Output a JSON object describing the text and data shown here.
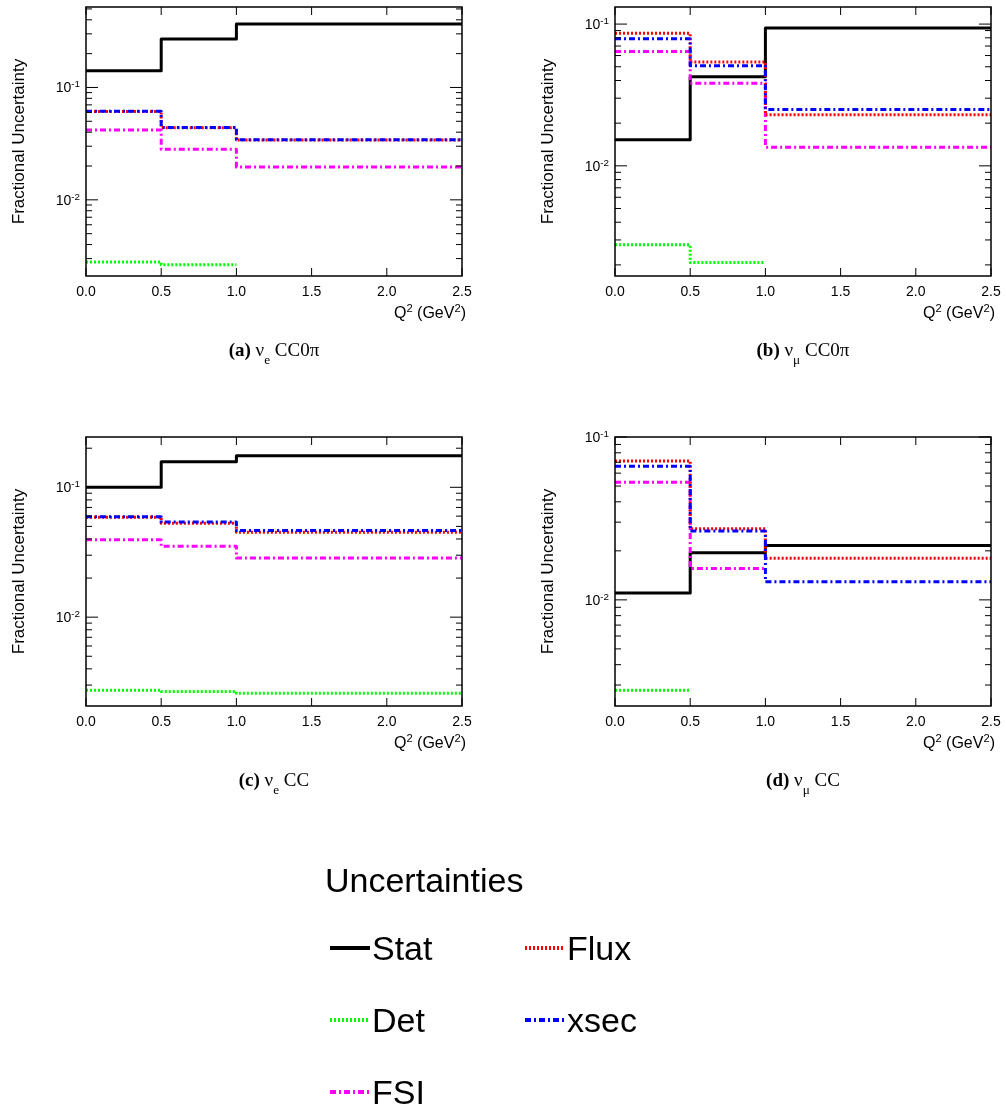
{
  "chart_data": [
    {
      "type": "step",
      "title": "(a) ν$_{e}$ CC0π",
      "xlabel": "Q$^{2}$ (GeV$^{2}$)",
      "ylabel": "Fractional Uncertainty",
      "log": "y",
      "xlim": [
        0,
        2.5
      ],
      "ylim": [
        0.0021,
        0.52
      ],
      "legend": "bottom",
      "legend_title": "Uncertainties",
      "xticks": [
        {
          "value": 0,
          "label": "0.0"
        },
        0.5,
        {
          "value": 1,
          "label": "1.0"
        },
        1.5,
        {
          "value": 2,
          "label": "2.0"
        },
        2.5
      ],
      "yticks": [
        {
          "value": 0.003,
          "label": null
        },
        {
          "value": 0.004,
          "label": null
        },
        {
          "value": 0.005,
          "label": null
        },
        {
          "value": 0.006,
          "label": null
        },
        {
          "value": 0.007,
          "label": null
        },
        {
          "value": 0.008,
          "label": null
        },
        {
          "value": 0.009,
          "label": null
        },
        {
          "value": 0.01,
          "label": "10$^{-2}$"
        },
        {
          "value": 0.02,
          "label": null
        },
        {
          "value": 0.03,
          "label": null
        },
        {
          "value": 0.04,
          "label": null
        },
        {
          "value": 0.05,
          "label": null
        },
        {
          "value": 0.06,
          "label": null
        },
        {
          "value": 0.07,
          "label": null
        },
        {
          "value": 0.08,
          "label": null
        },
        {
          "value": 0.09,
          "label": null
        },
        {
          "value": 0.1,
          "label": "10$^{-1}$"
        },
        {
          "value": 0.2,
          "label": null
        },
        {
          "value": 0.3,
          "label": null
        },
        {
          "value": 0.4,
          "label": null
        },
        {
          "value": 0.5,
          "label": null
        }
      ],
      "series": [
        {
          "name": "Stat",
          "color": "#000000",
          "line_style": "solid",
          "x": [
            0,
            0.5,
            1,
            2.5
          ],
          "values": [
            0.141,
            0.27,
            0.367,
            0.367
          ]
        },
        {
          "name": "Det",
          "color": "#00ff00",
          "line_style": "dotted",
          "x": [
            0,
            0.5,
            1
          ],
          "values": [
            0.0028,
            0.00265,
            0.00265
          ]
        },
        {
          "name": "FSI",
          "color": "#ff00ff",
          "line_style": "dashdot",
          "x": [
            0,
            0.5,
            1,
            2.5
          ],
          "values": [
            0.0418,
            0.0282,
            0.0196,
            0.0196
          ]
        },
        {
          "name": "Flux",
          "color": "#ff0000",
          "line_style": "dotted",
          "x": [
            0,
            0.5,
            1,
            2.5
          ],
          "values": [
            0.061,
            0.0437,
            0.034,
            0.034
          ]
        },
        {
          "name": "xsec",
          "color": "#0000ff",
          "line_style": "dashdot",
          "x": [
            0,
            0.5,
            1,
            2.5
          ],
          "values": [
            0.0614,
            0.0441,
            0.0343,
            0.0343
          ]
        }
      ]
    },
    {
      "type": "step",
      "title": "(b) ν$_{μ}$ CC0π",
      "xlabel": "Q$^{2}$ (GeV$^{2}$)",
      "ylabel": "Fractional Uncertainty",
      "log": "y",
      "xlim": [
        0,
        2.5
      ],
      "ylim": [
        0.00167,
        0.132
      ],
      "xticks": [
        {
          "value": 0,
          "label": "0.0"
        },
        0.5,
        {
          "value": 1,
          "label": "1.0"
        },
        1.5,
        {
          "value": 2,
          "label": "2.0"
        },
        2.5
      ],
      "yticks": [
        {
          "value": 0.002,
          "label": null
        },
        {
          "value": 0.003,
          "label": null
        },
        {
          "value": 0.004,
          "label": null
        },
        {
          "value": 0.005,
          "label": null
        },
        {
          "value": 0.006,
          "label": null
        },
        {
          "value": 0.007,
          "label": null
        },
        {
          "value": 0.008,
          "label": null
        },
        {
          "value": 0.009,
          "label": null
        },
        {
          "value": 0.01,
          "label": "10$^{-2}$"
        },
        {
          "value": 0.02,
          "label": null
        },
        {
          "value": 0.03,
          "label": null
        },
        {
          "value": 0.04,
          "label": null
        },
        {
          "value": 0.05,
          "label": null
        },
        {
          "value": 0.06,
          "label": null
        },
        {
          "value": 0.07,
          "label": null
        },
        {
          "value": 0.08,
          "label": null
        },
        {
          "value": 0.09,
          "label": null
        },
        {
          "value": 0.1,
          "label": "10$^{-1}$"
        }
      ],
      "series": [
        {
          "color": "#000000",
          "line_style": "solid",
          "x": [
            0,
            0.5,
            1,
            2.5
          ],
          "values": [
            0.0153,
            0.0425,
            0.0938,
            0.0938
          ]
        },
        {
          "color": "#00ff00",
          "line_style": "dotted",
          "x": [
            0,
            0.5,
            1
          ],
          "values": [
            0.00277,
            0.00208,
            0.00208
          ]
        },
        {
          "color": "#ff00ff",
          "line_style": "dashdot",
          "x": [
            0,
            0.5,
            1,
            2.5
          ],
          "values": [
            0.0641,
            0.0383,
            0.0135,
            0.0135
          ]
        },
        {
          "color": "#ff0000",
          "line_style": "dotted",
          "x": [
            0,
            0.5,
            1,
            2.5
          ],
          "values": [
            0.086,
            0.054,
            0.0229,
            0.0229
          ]
        },
        {
          "color": "#0000ff",
          "line_style": "dashdot",
          "x": [
            0,
            0.5,
            1,
            2.5
          ],
          "values": [
            0.0788,
            0.0508,
            0.025,
            0.025
          ]
        }
      ]
    },
    {
      "type": "step",
      "title": "(c) ν$_{e}$ CC",
      "xlabel": "Q$^{2}$ (GeV$^{2}$)",
      "ylabel": "Fractional Uncertainty",
      "log": "y",
      "xlim": [
        0,
        2.5
      ],
      "ylim": [
        0.00207,
        0.244
      ],
      "xticks": [
        {
          "value": 0,
          "label": "0.0"
        },
        0.5,
        {
          "value": 1,
          "label": "1.0"
        },
        1.5,
        {
          "value": 2,
          "label": "2.0"
        },
        2.5
      ],
      "yticks": [
        {
          "value": 0.003,
          "label": null
        },
        {
          "value": 0.004,
          "label": null
        },
        {
          "value": 0.005,
          "label": null
        },
        {
          "value": 0.006,
          "label": null
        },
        {
          "value": 0.007,
          "label": null
        },
        {
          "value": 0.008,
          "label": null
        },
        {
          "value": 0.009,
          "label": null
        },
        {
          "value": 0.01,
          "label": "10$^{-2}$"
        },
        {
          "value": 0.02,
          "label": null
        },
        {
          "value": 0.03,
          "label": null
        },
        {
          "value": 0.04,
          "label": null
        },
        {
          "value": 0.05,
          "label": null
        },
        {
          "value": 0.06,
          "label": null
        },
        {
          "value": 0.07,
          "label": null
        },
        {
          "value": 0.08,
          "label": null
        },
        {
          "value": 0.09,
          "label": null
        },
        {
          "value": 0.1,
          "label": "10$^{-1}$"
        },
        {
          "value": 0.2,
          "label": null
        }
      ],
      "series": [
        {
          "color": "#000000",
          "line_style": "solid",
          "x": [
            0,
            0.5,
            1,
            2.5
          ],
          "values": [
            0.1,
            0.157,
            0.175,
            0.175
          ]
        },
        {
          "color": "#00ff00",
          "line_style": "dotted",
          "x": [
            0,
            0.5,
            1,
            2.5
          ],
          "values": [
            0.00274,
            0.00268,
            0.00259,
            0.00259
          ]
        },
        {
          "color": "#ff00ff",
          "line_style": "dashdot",
          "x": [
            0,
            0.5,
            1,
            2.5
          ],
          "values": [
            0.0394,
            0.0352,
            0.0286,
            0.0286
          ]
        },
        {
          "color": "#ff0000",
          "line_style": "dotted",
          "x": [
            0,
            0.5,
            1,
            2.5
          ],
          "values": [
            0.0588,
            0.0528,
            0.045,
            0.045
          ]
        },
        {
          "color": "#0000ff",
          "line_style": "dashdot",
          "x": [
            0,
            0.5,
            1,
            2.5
          ],
          "values": [
            0.0594,
            0.0541,
            0.0464,
            0.0464
          ]
        }
      ]
    },
    {
      "type": "step",
      "title": "(d) ν$_{μ}$ CC",
      "xlabel": "Q$^{2}$ (GeV$^{2}$)",
      "ylabel": "Fractional Uncertainty",
      "log": "y",
      "xlim": [
        0,
        2.5
      ],
      "ylim": [
        0.00223,
        0.1
      ],
      "xticks": [
        {
          "value": 0,
          "label": "0.0"
        },
        0.5,
        {
          "value": 1,
          "label": "1.0"
        },
        1.5,
        {
          "value": 2,
          "label": "2.0"
        },
        2.5
      ],
      "yticks": [
        {
          "value": 0.003,
          "label": null
        },
        {
          "value": 0.004,
          "label": null
        },
        {
          "value": 0.005,
          "label": null
        },
        {
          "value": 0.006,
          "label": null
        },
        {
          "value": 0.007,
          "label": null
        },
        {
          "value": 0.008,
          "label": null
        },
        {
          "value": 0.009,
          "label": null
        },
        {
          "value": 0.01,
          "label": "10$^{-2}$"
        },
        {
          "value": 0.02,
          "label": null
        },
        {
          "value": 0.03,
          "label": null
        },
        {
          "value": 0.04,
          "label": null
        },
        {
          "value": 0.05,
          "label": null
        },
        {
          "value": 0.06,
          "label": null
        },
        {
          "value": 0.07,
          "label": null
        },
        {
          "value": 0.08,
          "label": null
        },
        {
          "value": 0.09,
          "label": null
        },
        {
          "value": 0.1,
          "label": "10$^{-1}$"
        }
      ],
      "series": [
        {
          "color": "#000000",
          "line_style": "solid",
          "x": [
            0,
            0.5,
            1,
            2.5
          ],
          "values": [
            0.011,
            0.0195,
            0.0216,
            0.0216
          ]
        },
        {
          "color": "#00ff00",
          "line_style": "dotted",
          "x": [
            0,
            0.5
          ],
          "values": [
            0.00279,
            0.00279
          ]
        },
        {
          "color": "#ff00ff",
          "line_style": "dashdot",
          "x": [
            0,
            0.5,
            1
          ],
          "values": [
            0.0527,
            0.0156,
            0.0156
          ]
        },
        {
          "color": "#ff0000",
          "line_style": "dotted",
          "x": [
            0,
            0.5,
            1,
            2.5
          ],
          "values": [
            0.0713,
            0.0273,
            0.018,
            0.018
          ]
        },
        {
          "color": "#0000ff",
          "line_style": "dashdot",
          "x": [
            0,
            0.5,
            1,
            2.5
          ],
          "values": [
            0.0661,
            0.0265,
            0.0129,
            0.0129
          ]
        }
      ]
    }
  ]
}
